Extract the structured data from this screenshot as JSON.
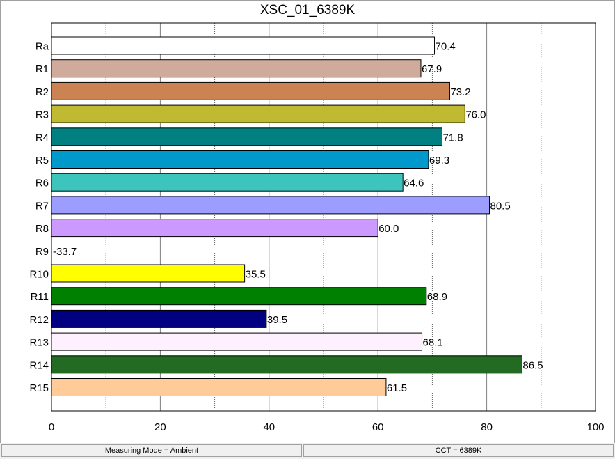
{
  "chart_data": {
    "type": "bar",
    "orientation": "horizontal",
    "title": "XSC_01_6389K",
    "categories": [
      "Ra",
      "R1",
      "R2",
      "R3",
      "R4",
      "R5",
      "R6",
      "R7",
      "R8",
      "R9",
      "R10",
      "R11",
      "R12",
      "R13",
      "R14",
      "R15"
    ],
    "values": [
      70.4,
      67.9,
      73.2,
      76.0,
      71.8,
      69.3,
      64.6,
      80.5,
      60.0,
      -33.7,
      35.5,
      68.9,
      39.5,
      68.1,
      86.5,
      61.5
    ],
    "value_labels": [
      "70.4",
      "67.9",
      "73.2",
      "76.0",
      "71.8",
      "69.3",
      "64.6",
      "80.5",
      "60.0",
      "-33.7",
      "35.5",
      "68.9",
      "39.5",
      "68.1",
      "86.5",
      "61.5"
    ],
    "colors": [
      "#ffffff",
      "#d0aa9a",
      "#cc8354",
      "#c0ba33",
      "#008080",
      "#0099cc",
      "#3dc4bc",
      "#9d9dff",
      "#cc99ff",
      "#ff0000",
      "#ffff00",
      "#008000",
      "#000080",
      "#fff0ff",
      "#236b23",
      "#ffcc99"
    ],
    "xlim": [
      0,
      100
    ],
    "x_ticks": [
      "0",
      "20",
      "40",
      "60",
      "80",
      "100"
    ],
    "grid": true,
    "xlabel": "",
    "ylabel": ""
  },
  "status": {
    "left": "Measuring Mode = Ambient",
    "right": "CCT = 6389K"
  }
}
